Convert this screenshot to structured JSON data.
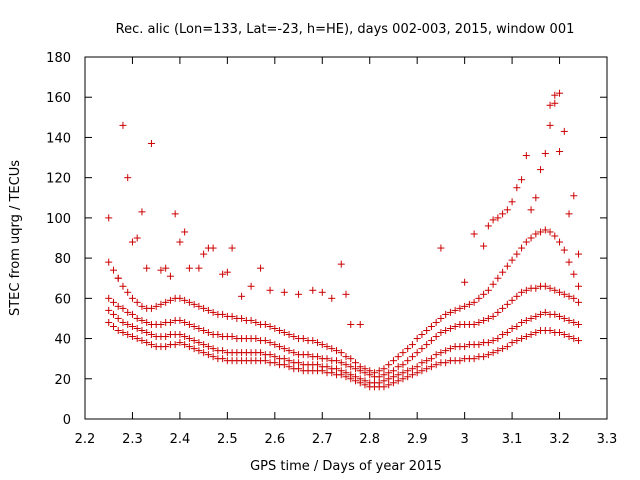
{
  "chart_data": {
    "type": "scatter",
    "title": "Rec. alic (Lon=133, Lat=-23, h=HE), days 002-003, 2015, window 001",
    "xlabel": "GPS time / Days of year 2015",
    "ylabel": "STEC from uqrg / TECUs",
    "xlim": [
      2.2,
      3.3
    ],
    "ylim": [
      0,
      180
    ],
    "xticks": [
      2.2,
      2.3,
      2.4,
      2.5,
      2.6,
      2.7,
      2.8,
      2.9,
      3.0,
      3.1,
      3.2,
      3.3
    ],
    "xtick_labels": [
      "2.2",
      "2.3",
      "2.4",
      "2.5",
      "2.6",
      "2.7",
      "2.8",
      "2.9",
      "3",
      "3.1",
      "3.2",
      "3.3"
    ],
    "yticks": [
      0,
      20,
      40,
      60,
      80,
      100,
      120,
      140,
      160,
      180
    ],
    "grid": false,
    "marker": "+",
    "color": "#cc0000",
    "series": [
      {
        "x": [
          2.25,
          2.26,
          2.27,
          2.28,
          2.29,
          2.3,
          2.31,
          2.32,
          2.33,
          2.34,
          2.35,
          2.36,
          2.37,
          2.38,
          2.39,
          2.4,
          2.41,
          2.42,
          2.43,
          2.44,
          2.45,
          2.46,
          2.47,
          2.48,
          2.49,
          2.5,
          2.51,
          2.52,
          2.53,
          2.54,
          2.55,
          2.56,
          2.57,
          2.58,
          2.59,
          2.6,
          2.61,
          2.62,
          2.63,
          2.64,
          2.65,
          2.66,
          2.67,
          2.68,
          2.69,
          2.7,
          2.71,
          2.72,
          2.73,
          2.74,
          2.75,
          2.76,
          2.77,
          2.78,
          2.79,
          2.8,
          2.81,
          2.82,
          2.83,
          2.84,
          2.85,
          2.86,
          2.87,
          2.88,
          2.89,
          2.9,
          2.91,
          2.92,
          2.93,
          2.94,
          2.95,
          2.96,
          2.97,
          2.98,
          2.99,
          3.0,
          3.01,
          3.02,
          3.03,
          3.04,
          3.05,
          3.06,
          3.07,
          3.08,
          3.09,
          3.1,
          3.11,
          3.12,
          3.13,
          3.14,
          3.15,
          3.16,
          3.17,
          3.18,
          3.19,
          3.2,
          3.21,
          3.22,
          3.23,
          3.24
        ],
        "y": [
          48,
          46,
          44,
          43,
          42,
          41,
          40,
          39,
          38,
          37,
          36,
          36,
          36,
          37,
          37,
          38,
          37,
          36,
          35,
          34,
          33,
          32,
          31,
          30,
          30,
          29,
          29,
          29,
          29,
          29,
          29,
          29,
          29,
          29,
          28,
          28,
          27,
          27,
          26,
          25,
          25,
          24,
          24,
          24,
          24,
          24,
          23,
          23,
          22,
          22,
          21,
          20,
          19,
          18,
          17,
          16,
          16,
          16,
          16,
          17,
          18,
          19,
          20,
          21,
          22,
          23,
          24,
          25,
          26,
          27,
          28,
          28,
          29,
          29,
          29,
          30,
          30,
          30,
          31,
          31,
          32,
          33,
          34,
          35,
          36,
          38,
          39,
          40,
          41,
          42,
          43,
          44,
          44,
          44,
          43,
          43,
          42,
          41,
          40,
          39
        ]
      },
      {
        "x": [
          2.25,
          2.26,
          2.27,
          2.28,
          2.29,
          2.3,
          2.31,
          2.32,
          2.33,
          2.34,
          2.35,
          2.36,
          2.37,
          2.38,
          2.39,
          2.4,
          2.41,
          2.42,
          2.43,
          2.44,
          2.45,
          2.46,
          2.47,
          2.48,
          2.49,
          2.5,
          2.51,
          2.52,
          2.53,
          2.54,
          2.55,
          2.56,
          2.57,
          2.58,
          2.59,
          2.6,
          2.61,
          2.62,
          2.63,
          2.64,
          2.65,
          2.66,
          2.67,
          2.68,
          2.69,
          2.7,
          2.71,
          2.72,
          2.73,
          2.74,
          2.75,
          2.76,
          2.77,
          2.78,
          2.79,
          2.8,
          2.81,
          2.82,
          2.83,
          2.84,
          2.85,
          2.86,
          2.87,
          2.88,
          2.89,
          2.9,
          2.91,
          2.92,
          2.93,
          2.94,
          2.95,
          2.96,
          2.97,
          2.98,
          2.99,
          3.0,
          3.01,
          3.02,
          3.03,
          3.04,
          3.05,
          3.06,
          3.07,
          3.08,
          3.09,
          3.1,
          3.11,
          3.12,
          3.13,
          3.14,
          3.15,
          3.16,
          3.17,
          3.18,
          3.19,
          3.2,
          3.21,
          3.22,
          3.23,
          3.24
        ],
        "y": [
          54,
          52,
          50,
          48,
          47,
          46,
          45,
          44,
          43,
          42,
          41,
          41,
          41,
          42,
          42,
          42,
          41,
          40,
          39,
          38,
          37,
          36,
          35,
          34,
          34,
          33,
          33,
          33,
          33,
          33,
          33,
          33,
          33,
          32,
          32,
          31,
          30,
          30,
          29,
          28,
          28,
          27,
          27,
          27,
          27,
          26,
          26,
          25,
          25,
          24,
          23,
          22,
          21,
          20,
          19,
          18,
          18,
          18,
          19,
          20,
          21,
          22,
          23,
          24,
          25,
          26,
          28,
          29,
          30,
          32,
          33,
          34,
          35,
          36,
          36,
          36,
          37,
          37,
          37,
          38,
          38,
          39,
          40,
          42,
          43,
          45,
          46,
          48,
          49,
          50,
          51,
          52,
          53,
          52,
          52,
          51,
          50,
          49,
          48,
          47
        ]
      },
      {
        "x": [
          2.25,
          2.26,
          2.27,
          2.28,
          2.29,
          2.3,
          2.31,
          2.32,
          2.33,
          2.34,
          2.35,
          2.36,
          2.37,
          2.38,
          2.39,
          2.4,
          2.41,
          2.42,
          2.43,
          2.44,
          2.45,
          2.46,
          2.47,
          2.48,
          2.49,
          2.5,
          2.51,
          2.52,
          2.53,
          2.54,
          2.55,
          2.56,
          2.57,
          2.58,
          2.59,
          2.6,
          2.61,
          2.62,
          2.63,
          2.64,
          2.65,
          2.66,
          2.67,
          2.68,
          2.69,
          2.7,
          2.71,
          2.72,
          2.73,
          2.74,
          2.75,
          2.76,
          2.77,
          2.78,
          2.79,
          2.8,
          2.81,
          2.82,
          2.83,
          2.84,
          2.85,
          2.86,
          2.87,
          2.88,
          2.89,
          2.9,
          2.91,
          2.92,
          2.93,
          2.94,
          2.95,
          2.96,
          2.97,
          2.98,
          2.99,
          3.0,
          3.01,
          3.02,
          3.03,
          3.04,
          3.05,
          3.06,
          3.07,
          3.08,
          3.09,
          3.1,
          3.11,
          3.12,
          3.13,
          3.14,
          3.15,
          3.16,
          3.17,
          3.18,
          3.19,
          3.2,
          3.21,
          3.22,
          3.23,
          3.24
        ],
        "y": [
          60,
          58,
          56,
          55,
          53,
          52,
          50,
          49,
          48,
          47,
          47,
          47,
          48,
          48,
          49,
          49,
          48,
          47,
          46,
          45,
          44,
          43,
          42,
          42,
          41,
          41,
          41,
          40,
          40,
          40,
          40,
          40,
          39,
          39,
          38,
          37,
          36,
          35,
          34,
          33,
          32,
          32,
          32,
          31,
          31,
          30,
          30,
          29,
          29,
          28,
          27,
          26,
          25,
          24,
          23,
          22,
          21,
          21,
          22,
          23,
          24,
          26,
          27,
          29,
          31,
          33,
          35,
          37,
          39,
          41,
          43,
          44,
          45,
          46,
          47,
          47,
          47,
          47,
          48,
          49,
          50,
          51,
          53,
          55,
          57,
          59,
          61,
          63,
          64,
          65,
          65,
          66,
          66,
          65,
          64,
          63,
          62,
          61,
          60,
          58
        ]
      },
      {
        "x": [
          2.25,
          2.26,
          2.27,
          2.28,
          2.29,
          2.3,
          2.31,
          2.32,
          2.33,
          2.34,
          2.35,
          2.36,
          2.37,
          2.38,
          2.39,
          2.4,
          2.41,
          2.42,
          2.43,
          2.44,
          2.45,
          2.46,
          2.47,
          2.48,
          2.49,
          2.5,
          2.51,
          2.52,
          2.53,
          2.54,
          2.55,
          2.56,
          2.57,
          2.58,
          2.59,
          2.6,
          2.61,
          2.62,
          2.63,
          2.64,
          2.65,
          2.66,
          2.67,
          2.68,
          2.69,
          2.7,
          2.71,
          2.72,
          2.73,
          2.74,
          2.75,
          2.76,
          2.77,
          2.78,
          2.79,
          2.8,
          2.81,
          2.82,
          2.83,
          2.84,
          2.85,
          2.86,
          2.87,
          2.88,
          2.89,
          2.9,
          2.91,
          2.92,
          2.93,
          2.94,
          2.95,
          2.96,
          2.97,
          2.98,
          2.99,
          3.0,
          3.01,
          3.02,
          3.03,
          3.04,
          3.05,
          3.06,
          3.07,
          3.08,
          3.09,
          3.1,
          3.11,
          3.12,
          3.13,
          3.14,
          3.15,
          3.16,
          3.17,
          3.18,
          3.19,
          3.2,
          3.21,
          3.22,
          3.23,
          3.24
        ],
        "y": [
          78,
          74,
          70,
          66,
          63,
          60,
          58,
          56,
          55,
          55,
          56,
          57,
          58,
          59,
          60,
          60,
          59,
          58,
          57,
          56,
          55,
          54,
          53,
          52,
          52,
          51,
          51,
          50,
          50,
          49,
          49,
          48,
          47,
          47,
          46,
          45,
          44,
          43,
          42,
          41,
          40,
          40,
          39,
          39,
          38,
          37,
          36,
          35,
          34,
          33,
          31,
          30,
          28,
          26,
          25,
          24,
          23,
          24,
          25,
          27,
          29,
          31,
          33,
          35,
          37,
          40,
          42,
          44,
          46,
          48,
          50,
          52,
          53,
          54,
          55,
          56,
          57,
          58,
          60,
          62,
          64,
          67,
          70,
          73,
          76,
          79,
          82,
          85,
          88,
          90,
          92,
          93,
          94,
          93,
          91,
          88,
          84,
          78,
          72,
          66
        ]
      },
      {
        "x": [
          2.25,
          2.27,
          2.28,
          2.29,
          2.3,
          2.31,
          2.32,
          2.33,
          2.34,
          2.36,
          2.37,
          2.38,
          2.39,
          2.4,
          2.41,
          2.42,
          2.44,
          2.45,
          2.46,
          2.47,
          2.49,
          2.5,
          2.51,
          2.53,
          2.55,
          2.57,
          2.59,
          2.62,
          2.65,
          2.68,
          2.7,
          2.72,
          2.74,
          2.75,
          2.76,
          2.78,
          2.95,
          3.0,
          3.02,
          3.04,
          3.05,
          3.06,
          3.07,
          3.08,
          3.09,
          3.1,
          3.11,
          3.12,
          3.13,
          3.14,
          3.15,
          3.16,
          3.17,
          3.18,
          3.18,
          3.19,
          3.19,
          3.2,
          3.2,
          3.21,
          3.22,
          3.23,
          3.24
        ],
        "y": [
          100,
          70,
          146,
          120,
          88,
          90,
          103,
          75,
          137,
          74,
          75,
          71,
          102,
          88,
          93,
          75,
          75,
          82,
          85,
          85,
          72,
          73,
          85,
          61,
          66,
          75,
          64,
          63,
          62,
          64,
          63,
          60,
          77,
          62,
          47,
          47,
          85,
          68,
          92,
          86,
          96,
          99,
          100,
          102,
          104,
          108,
          115,
          119,
          131,
          104,
          110,
          124,
          132,
          146,
          156,
          161,
          157,
          162,
          133,
          143,
          102,
          111,
          82
        ]
      }
    ]
  }
}
